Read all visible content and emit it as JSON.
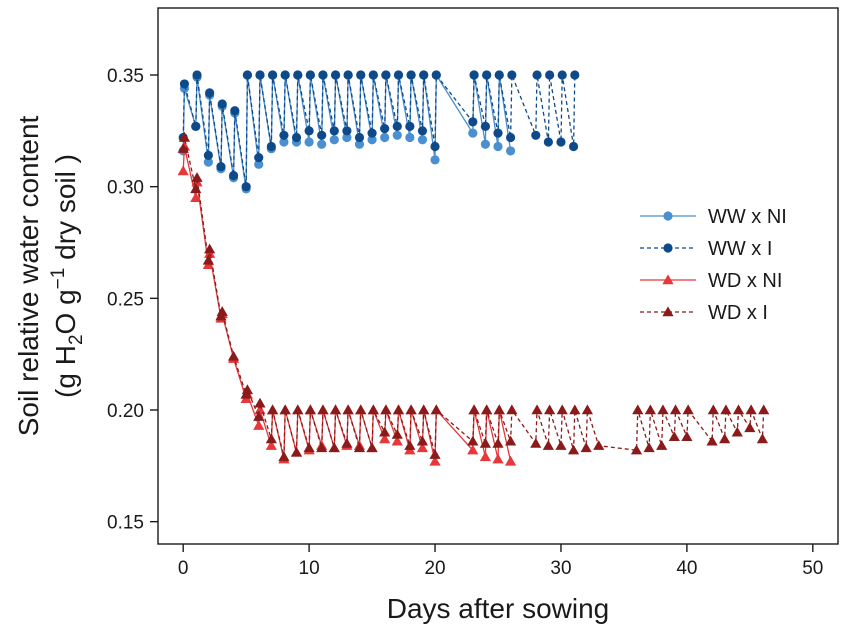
{
  "chart_data": {
    "type": "line",
    "xlabel": "Days after sowing",
    "ylabel_line1": "Soil relative water content",
    "ylabel_line2": {
      "pre": "(g  H",
      "sub1": "2",
      "mid": "O g",
      "sup": "−1",
      "post": " dry soil )"
    },
    "xlim": [
      -2,
      52
    ],
    "ylim": [
      0.14,
      0.38
    ],
    "x_ticks": [
      0,
      10,
      20,
      30,
      40,
      50
    ],
    "x_tick_labels": [
      "0",
      "10",
      "20",
      "30",
      "40",
      "50"
    ],
    "y_ticks": [
      0.15,
      0.2,
      0.25,
      0.3,
      0.35
    ],
    "y_tick_labels": [
      "0.15",
      "0.20",
      "0.25",
      "0.30",
      "0.35"
    ],
    "grid": false,
    "legend_position": "right",
    "series": [
      {
        "name": "WW x NI",
        "color": "#4a8fcf",
        "marker": "circle",
        "dash": "solid",
        "x": [
          0,
          0.1,
          1,
          1.1,
          2,
          2.1,
          3,
          3.1,
          4,
          4.1,
          5,
          5.1,
          6,
          6.1,
          7,
          7.1,
          8,
          8.1,
          9,
          9.1,
          10,
          10.1,
          11,
          11.1,
          12,
          12.1,
          13,
          13.1,
          14,
          14.1,
          15,
          15.1,
          16,
          16.1,
          17,
          17.1,
          18,
          18.1,
          19,
          19.1,
          20,
          20.1,
          23,
          23.1,
          24,
          24.1,
          25,
          25.1,
          26
        ],
        "y": [
          0.316,
          0.344,
          0.327,
          0.349,
          0.311,
          0.341,
          0.308,
          0.336,
          0.304,
          0.333,
          0.299,
          0.35,
          0.31,
          0.35,
          0.317,
          0.35,
          0.32,
          0.35,
          0.32,
          0.35,
          0.32,
          0.35,
          0.319,
          0.35,
          0.321,
          0.35,
          0.322,
          0.35,
          0.319,
          0.35,
          0.321,
          0.35,
          0.322,
          0.35,
          0.323,
          0.35,
          0.322,
          0.35,
          0.321,
          0.35,
          0.312,
          0.35,
          0.324,
          0.35,
          0.319,
          0.35,
          0.318,
          0.35,
          0.316
        ]
      },
      {
        "name": "WW x I",
        "color": "#0e4a8a",
        "marker": "circle",
        "dash": "dashed",
        "x": [
          0,
          0.1,
          1,
          1.1,
          2,
          2.1,
          3,
          3.1,
          4,
          4.1,
          5,
          5.1,
          6,
          6.1,
          7,
          7.1,
          8,
          8.1,
          9,
          9.1,
          10,
          10.1,
          11,
          11.1,
          12,
          12.1,
          13,
          13.1,
          14,
          14.1,
          15,
          15.1,
          16,
          16.1,
          17,
          17.1,
          18,
          18.1,
          19,
          19.1,
          20,
          20.1,
          23,
          23.1,
          24,
          24.1,
          25,
          25.1,
          26,
          26.1,
          28,
          28.1,
          29,
          29.1,
          30,
          30.1,
          31,
          31.1
        ],
        "y": [
          0.322,
          0.346,
          0.327,
          0.35,
          0.314,
          0.342,
          0.309,
          0.337,
          0.305,
          0.334,
          0.3,
          0.35,
          0.313,
          0.35,
          0.318,
          0.35,
          0.323,
          0.35,
          0.322,
          0.35,
          0.325,
          0.35,
          0.323,
          0.35,
          0.325,
          0.35,
          0.325,
          0.35,
          0.322,
          0.35,
          0.324,
          0.35,
          0.326,
          0.35,
          0.327,
          0.35,
          0.327,
          0.35,
          0.325,
          0.35,
          0.318,
          0.35,
          0.329,
          0.35,
          0.327,
          0.35,
          0.324,
          0.35,
          0.322,
          0.35,
          0.323,
          0.35,
          0.32,
          0.35,
          0.32,
          0.35,
          0.318,
          0.35
        ]
      },
      {
        "name": "WD x NI",
        "color": "#e8373a",
        "marker": "triangle",
        "dash": "solid",
        "x": [
          0,
          0.1,
          1,
          1.1,
          2,
          2.1,
          3,
          3.1,
          4,
          5,
          5.1,
          6,
          6.1,
          7,
          7.1,
          8,
          8.1,
          9,
          9.1,
          10,
          10.1,
          11,
          11.1,
          12,
          12.1,
          13,
          13.1,
          14,
          14.1,
          15,
          15.1,
          16,
          16.1,
          17,
          17.1,
          18,
          18.1,
          19,
          19.1,
          20,
          20.1,
          23,
          23.1,
          24,
          24.1,
          25,
          25.1,
          26
        ],
        "y": [
          0.307,
          0.318,
          0.295,
          0.302,
          0.265,
          0.27,
          0.241,
          0.243,
          0.223,
          0.205,
          0.207,
          0.193,
          0.2,
          0.184,
          0.2,
          0.178,
          0.2,
          0.181,
          0.2,
          0.182,
          0.2,
          0.184,
          0.2,
          0.183,
          0.2,
          0.184,
          0.2,
          0.184,
          0.2,
          0.183,
          0.2,
          0.187,
          0.2,
          0.186,
          0.2,
          0.182,
          0.2,
          0.183,
          0.2,
          0.177,
          0.2,
          0.182,
          0.2,
          0.179,
          0.2,
          0.178,
          0.2,
          0.177
        ]
      },
      {
        "name": "WD x I",
        "color": "#8b1a1a",
        "marker": "triangle",
        "dash": "dashed",
        "x": [
          0,
          0.1,
          1,
          1.1,
          2,
          2.1,
          3,
          3.1,
          4,
          5,
          5.1,
          6,
          6.1,
          7,
          7.1,
          8,
          8.1,
          9,
          9.1,
          10,
          10.1,
          11,
          11.1,
          12,
          12.1,
          13,
          13.1,
          14,
          14.1,
          15,
          15.1,
          16,
          16.1,
          17,
          17.1,
          18,
          18.1,
          19,
          19.1,
          20,
          20.1,
          23,
          23.1,
          24,
          24.1,
          25,
          25.1,
          26,
          26.1,
          28,
          28.1,
          29,
          29.1,
          30,
          30.1,
          31,
          31.1,
          32,
          32.1,
          33,
          36,
          36.1,
          37,
          37.1,
          38,
          38.1,
          39,
          39.1,
          40,
          40.1,
          42,
          42.1,
          43,
          43.1,
          44,
          44.1,
          45,
          45.1,
          46,
          46.1
        ],
        "y": [
          0.317,
          0.322,
          0.299,
          0.304,
          0.267,
          0.272,
          0.242,
          0.244,
          0.224,
          0.207,
          0.209,
          0.197,
          0.203,
          0.187,
          0.2,
          0.179,
          0.2,
          0.181,
          0.2,
          0.183,
          0.2,
          0.183,
          0.2,
          0.183,
          0.2,
          0.185,
          0.2,
          0.183,
          0.2,
          0.183,
          0.2,
          0.19,
          0.2,
          0.189,
          0.2,
          0.184,
          0.2,
          0.186,
          0.2,
          0.18,
          0.2,
          0.186,
          0.2,
          0.185,
          0.2,
          0.185,
          0.2,
          0.186,
          0.2,
          0.185,
          0.2,
          0.184,
          0.2,
          0.184,
          0.2,
          0.182,
          0.2,
          0.183,
          0.2,
          0.184,
          0.182,
          0.2,
          0.183,
          0.2,
          0.184,
          0.2,
          0.188,
          0.2,
          0.188,
          0.2,
          0.186,
          0.2,
          0.187,
          0.2,
          0.19,
          0.2,
          0.192,
          0.2,
          0.187,
          0.2
        ]
      }
    ]
  }
}
